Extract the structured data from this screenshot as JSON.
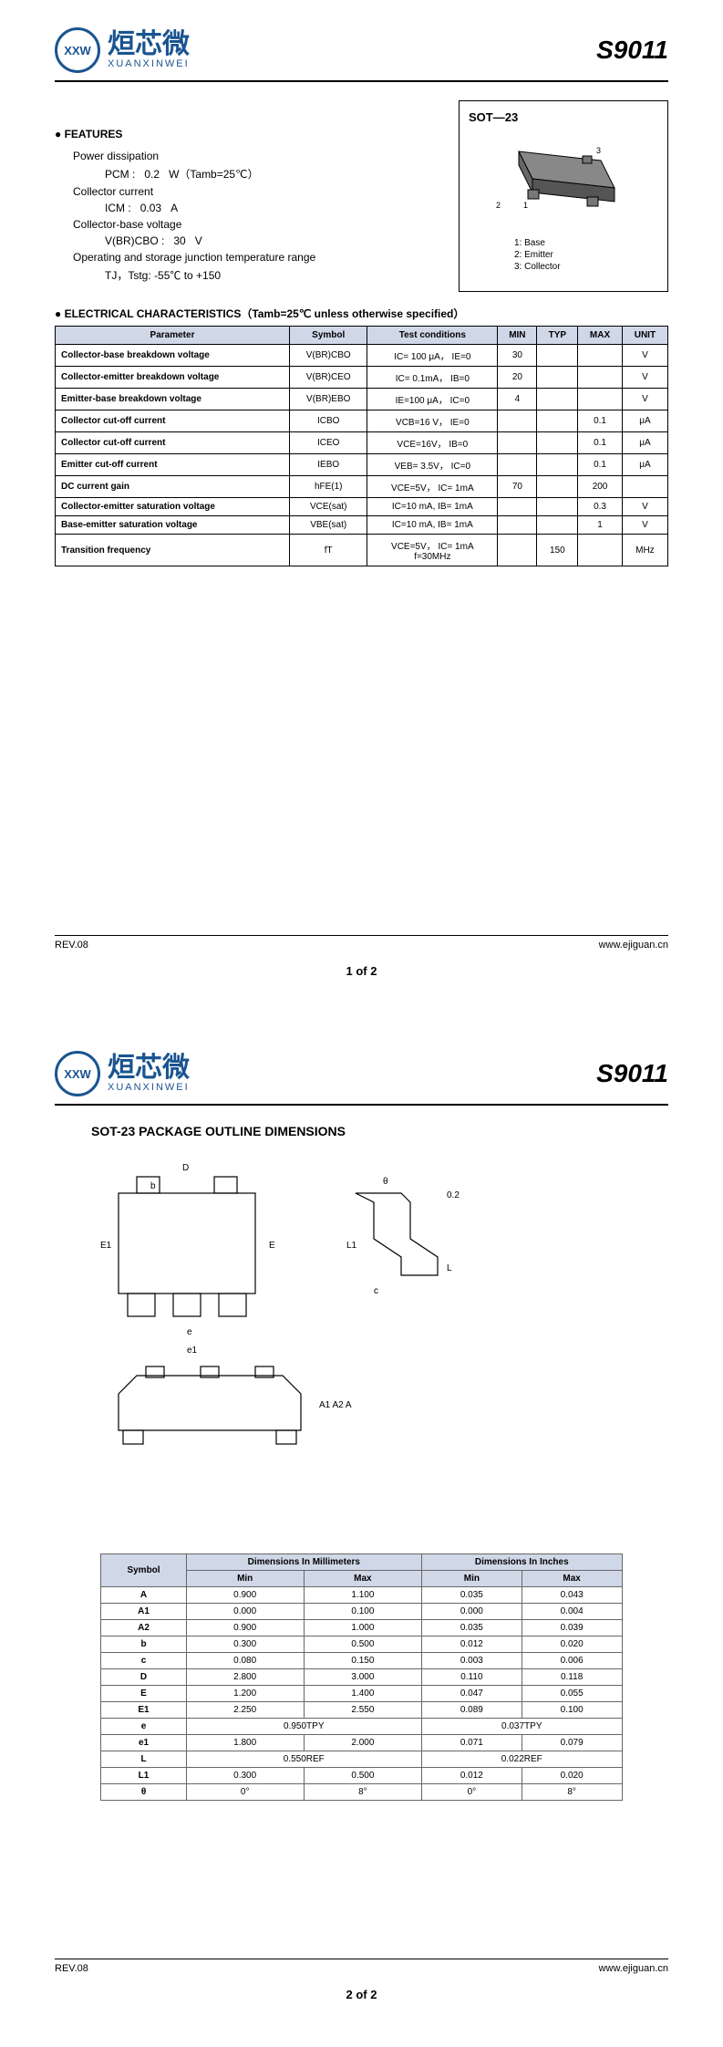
{
  "logo": {
    "cn": "烜芯微",
    "en": "XUANXINWEI",
    "mark": "XXW"
  },
  "part_number": "S9011",
  "package": {
    "label": "SOT—23",
    "pin1": "1: Base",
    "pin2": "2: Emitter",
    "pin3": "3: Collector"
  },
  "features": {
    "title": "● FEATURES",
    "lines": [
      {
        "label": "Power dissipation",
        "sym": "PCM :",
        "val": "0.2",
        "unit": "W（Tamb=25℃）"
      },
      {
        "label": "Collector current",
        "sym": "ICM :",
        "val": "0.03",
        "unit": "A"
      },
      {
        "label": "Collector-base voltage",
        "sym": "V(BR)CBO :",
        "val": "30",
        "unit": "V"
      },
      {
        "label": "Operating and storage junction temperature range",
        "sym": "TJ，Tstg:",
        "val": "-55℃ to +150",
        "unit": ""
      }
    ]
  },
  "char": {
    "title": "● ELECTRICAL CHARACTERISTICS（Tamb=25℃ unless otherwise specified）",
    "headers": [
      "Parameter",
      "Symbol",
      "Test conditions",
      "MIN",
      "TYP",
      "MAX",
      "UNIT"
    ],
    "rows": [
      [
        "Collector-base breakdown voltage",
        "V(BR)CBO",
        "IC= 100 μA， IE=0",
        "30",
        "",
        "",
        "V"
      ],
      [
        "Collector-emitter breakdown voltage",
        "V(BR)CEO",
        "IC= 0.1mA， IB=0",
        "20",
        "",
        "",
        "V"
      ],
      [
        "Emitter-base breakdown voltage",
        "V(BR)EBO",
        "IE=100 μA， IC=0",
        "4",
        "",
        "",
        "V"
      ],
      [
        "Collector cut-off current",
        "ICBO",
        "VCB=16 V， IE=0",
        "",
        "",
        "0.1",
        "μA"
      ],
      [
        "Collector cut-off current",
        "ICEO",
        "VCE=16V， IB=0",
        "",
        "",
        "0.1",
        "μA"
      ],
      [
        "Emitter cut-off current",
        "IEBO",
        "VEB= 3.5V， IC=0",
        "",
        "",
        "0.1",
        "μA"
      ],
      [
        "DC current gain",
        "hFE(1)",
        "VCE=5V， IC= 1mA",
        "70",
        "",
        "200",
        ""
      ],
      [
        "Collector-emitter saturation voltage",
        "VCE(sat)",
        "IC=10 mA, IB= 1mA",
        "",
        "",
        "0.3",
        "V"
      ],
      [
        "Base-emitter saturation voltage",
        "VBE(sat)",
        "IC=10 mA, IB= 1mA",
        "",
        "",
        "1",
        "V"
      ],
      [
        "Transition frequency",
        "fT",
        "VCE=5V， IC= 1mA\nf=30MHz",
        "",
        "150",
        "",
        "MHz"
      ]
    ]
  },
  "footer": {
    "rev": "REV.08",
    "url": "www.ejiguan.cn",
    "p1": "1 of 2",
    "p2": "2 of 2"
  },
  "outline_title": "SOT-23 PACKAGE OUTLINE DIMENSIONS",
  "dims": {
    "headers": [
      "Symbol",
      "Dimensions In Millimeters",
      "Dimensions In Inches"
    ],
    "subheaders": [
      "Min",
      "Max",
      "Min",
      "Max"
    ],
    "rows": [
      [
        "A",
        "0.900",
        "1.100",
        "0.035",
        "0.043"
      ],
      [
        "A1",
        "0.000",
        "0.100",
        "0.000",
        "0.004"
      ],
      [
        "A2",
        "0.900",
        "1.000",
        "0.035",
        "0.039"
      ],
      [
        "b",
        "0.300",
        "0.500",
        "0.012",
        "0.020"
      ],
      [
        "c",
        "0.080",
        "0.150",
        "0.003",
        "0.006"
      ],
      [
        "D",
        "2.800",
        "3.000",
        "0.110",
        "0.118"
      ],
      [
        "E",
        "1.200",
        "1.400",
        "0.047",
        "0.055"
      ],
      [
        "E1",
        "2.250",
        "2.550",
        "0.089",
        "0.100"
      ],
      [
        "e",
        "0.950TPY",
        "",
        "0.037TPY",
        ""
      ],
      [
        "e1",
        "1.800",
        "2.000",
        "0.071",
        "0.079"
      ],
      [
        "L",
        "0.550REF",
        "",
        "0.022REF",
        ""
      ],
      [
        "L1",
        "0.300",
        "0.500",
        "0.012",
        "0.020"
      ],
      [
        "θ",
        "0°",
        "8°",
        "0°",
        "8°"
      ]
    ]
  },
  "colors": {
    "brand": "#1a5490",
    "table_header": "#d0d8e8"
  }
}
